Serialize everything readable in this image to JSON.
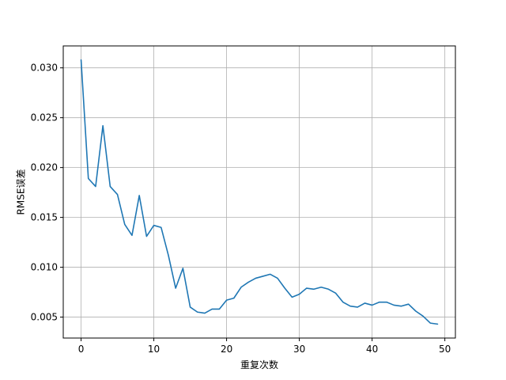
{
  "chart_data": {
    "type": "line",
    "xlabel": "重复次数",
    "ylabel": "RMSE误差",
    "xlim": [
      -2.45,
      51.45
    ],
    "ylim": [
      0.0029,
      0.0322
    ],
    "grid": true,
    "x_ticks": [
      0,
      10,
      20,
      30,
      40,
      50
    ],
    "x_tick_labels": [
      "0",
      "10",
      "20",
      "30",
      "40",
      "50"
    ],
    "y_ticks": [
      0.005,
      0.01,
      0.015,
      0.02,
      0.025,
      0.03
    ],
    "y_tick_labels": [
      "0.005",
      "0.010",
      "0.015",
      "0.020",
      "0.025",
      "0.030"
    ],
    "series": [
      {
        "color": "#1f77b4",
        "x": [
          0,
          1,
          2,
          3,
          4,
          5,
          6,
          7,
          8,
          9,
          10,
          11,
          12,
          13,
          14,
          15,
          16,
          17,
          18,
          19,
          20,
          21,
          22,
          23,
          24,
          25,
          26,
          27,
          28,
          29,
          30,
          31,
          32,
          33,
          34,
          35,
          36,
          37,
          38,
          39,
          40,
          41,
          42,
          43,
          44,
          45,
          46,
          47,
          48,
          49
        ],
        "values": [
          0.0308,
          0.0189,
          0.0181,
          0.0242,
          0.0181,
          0.0173,
          0.0143,
          0.0132,
          0.0172,
          0.0131,
          0.0142,
          0.014,
          0.0112,
          0.0079,
          0.0099,
          0.006,
          0.0055,
          0.0054,
          0.0058,
          0.0058,
          0.0067,
          0.0069,
          0.008,
          0.0085,
          0.0089,
          0.0091,
          0.0093,
          0.0089,
          0.0079,
          0.007,
          0.0073,
          0.0079,
          0.0078,
          0.008,
          0.0078,
          0.0074,
          0.0065,
          0.0061,
          0.006,
          0.0064,
          0.0062,
          0.0065,
          0.0065,
          0.0062,
          0.0061,
          0.0063,
          0.0056,
          0.0051,
          0.0044,
          0.0043
        ]
      }
    ]
  }
}
